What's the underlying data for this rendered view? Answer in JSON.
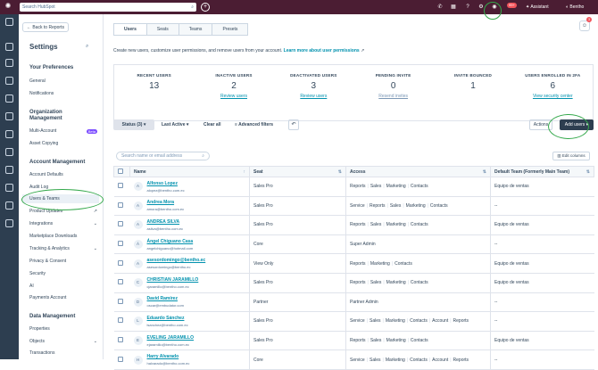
{
  "topbar": {
    "search_placeholder": "Search HubSpot",
    "notif_count": "99+",
    "assistant_label": "Assistant",
    "user_name": "Bentho",
    "colors": {
      "bg": "#4b1d33"
    }
  },
  "sidebar": {
    "back_label": "Back to Reports",
    "title": "Settings",
    "sections": [
      {
        "header": "Your Preferences",
        "items": [
          "General",
          "Notifications"
        ]
      },
      {
        "header": "Organization Management",
        "items": [
          "Multi-Account",
          "Asset Copying"
        ]
      },
      {
        "header": "Account Management",
        "items": [
          "Account Defaults",
          "Audit Log",
          "Users & Teams",
          "Product Updates",
          "Integrations",
          "Marketplace Downloads",
          "Tracking & Analytics",
          "Privacy & Consent",
          "Security",
          "AI",
          "Payments Account"
        ]
      },
      {
        "header": "Data Management",
        "items": [
          "Properties",
          "Objects",
          "Transactions"
        ]
      }
    ],
    "badge_new": "Beta"
  },
  "tabs": [
    "Users",
    "Seats",
    "Teams",
    "Presets"
  ],
  "notif_badge": "3",
  "description": "Create new users, customize user permissions, and remove users from your account.",
  "description_link": "Learn more about user permissions",
  "stats": [
    {
      "label": "RECENT USERS",
      "value": "13",
      "sub": ""
    },
    {
      "label": "INACTIVE USERS",
      "value": "2",
      "sub": "Review users"
    },
    {
      "label": "DEACTIVATED USERS",
      "value": "3",
      "sub": "Review users"
    },
    {
      "label": "PENDING INVITE",
      "value": "0",
      "sub": "Resend invites"
    },
    {
      "label": "INVITE BOUNCED",
      "value": "1",
      "sub": ""
    },
    {
      "label": "USERS ENROLLED IN 2FA",
      "value": "6",
      "sub": "View security center"
    }
  ],
  "filters": {
    "status": "Status (3)",
    "last_active": "Last Active",
    "clear_all": "Clear all",
    "advanced": "Advanced filters",
    "actions": "Actions",
    "add_users": "Add users"
  },
  "search_placeholder": "Search name or email address",
  "edit_columns": "Edit columns",
  "table": {
    "headers": [
      "Name",
      "Seat",
      "Access",
      "Default Team (Formerly Main Team)"
    ],
    "rows": [
      {
        "initial": "A",
        "name": "Alfonso Lopez",
        "email": "alopez@bentho.com.ec",
        "seat": "Sales Pro",
        "access": [
          "Reports",
          "Sales",
          "Marketing",
          "Contacts"
        ],
        "team": "Equipo de ventas"
      },
      {
        "initial": "A",
        "name": "Andrea Mora",
        "email": "amora@bentho.com.ec",
        "seat": "Sales Pro",
        "access": [
          "Service",
          "Reports",
          "Sales",
          "Marketing",
          "Contacts"
        ],
        "team": "--"
      },
      {
        "initial": "A",
        "name": "ANDREA SILVA",
        "email": "asilva@bentho.com.ec",
        "seat": "Sales Pro",
        "access": [
          "Reports",
          "Sales",
          "Marketing",
          "Contacts"
        ],
        "team": "Equipo de ventas"
      },
      {
        "initial": "Á",
        "name": "Ángel Chiguano Casa",
        "email": "angelchiguano@hotmail.com",
        "seat": "Core",
        "access": [
          "Super Admin"
        ],
        "team": "--"
      },
      {
        "initial": "A",
        "name": "asesordomingo@bentho.ec",
        "email": "asesordomingo@bentho.ec",
        "seat": "View Only",
        "access": [
          "Reports",
          "Marketing",
          "Contacts"
        ],
        "team": "Equipo de ventas"
      },
      {
        "initial": "C",
        "name": "CHRISTIAN JARAMILLO",
        "email": "cjaramillo@bentho.com.ec",
        "seat": "Sales Pro",
        "access": [
          "Reports",
          "Sales",
          "Marketing",
          "Contacts"
        ],
        "team": "Equipo de ventas"
      },
      {
        "initial": "D",
        "name": "David Ramírez",
        "email": "oscar@embudator.com",
        "seat": "Partner",
        "access": [
          "Partner Admin"
        ],
        "team": "--"
      },
      {
        "initial": "L",
        "name": "Eduardo Sánchez",
        "email": "lsanchez@bentho.com.ec",
        "seat": "Sales Pro",
        "access": [
          "Service",
          "Sales",
          "Marketing",
          "Contacts",
          "Account",
          "Reports"
        ],
        "team": "--"
      },
      {
        "initial": "E",
        "name": "EVELING JARAMILLO",
        "email": "ejaramillo@bentho.com.ec",
        "seat": "Sales Pro",
        "access": [
          "Reports",
          "Sales",
          "Marketing",
          "Contacts"
        ],
        "team": "Equipo de ventas"
      },
      {
        "initial": "H",
        "name": "Harry Alvarado",
        "email": "halvarado@bentho.com.ec",
        "seat": "Core",
        "access": [
          "Service",
          "Sales",
          "Marketing",
          "Contacts",
          "Account",
          "Reports"
        ],
        "team": "--"
      }
    ]
  }
}
